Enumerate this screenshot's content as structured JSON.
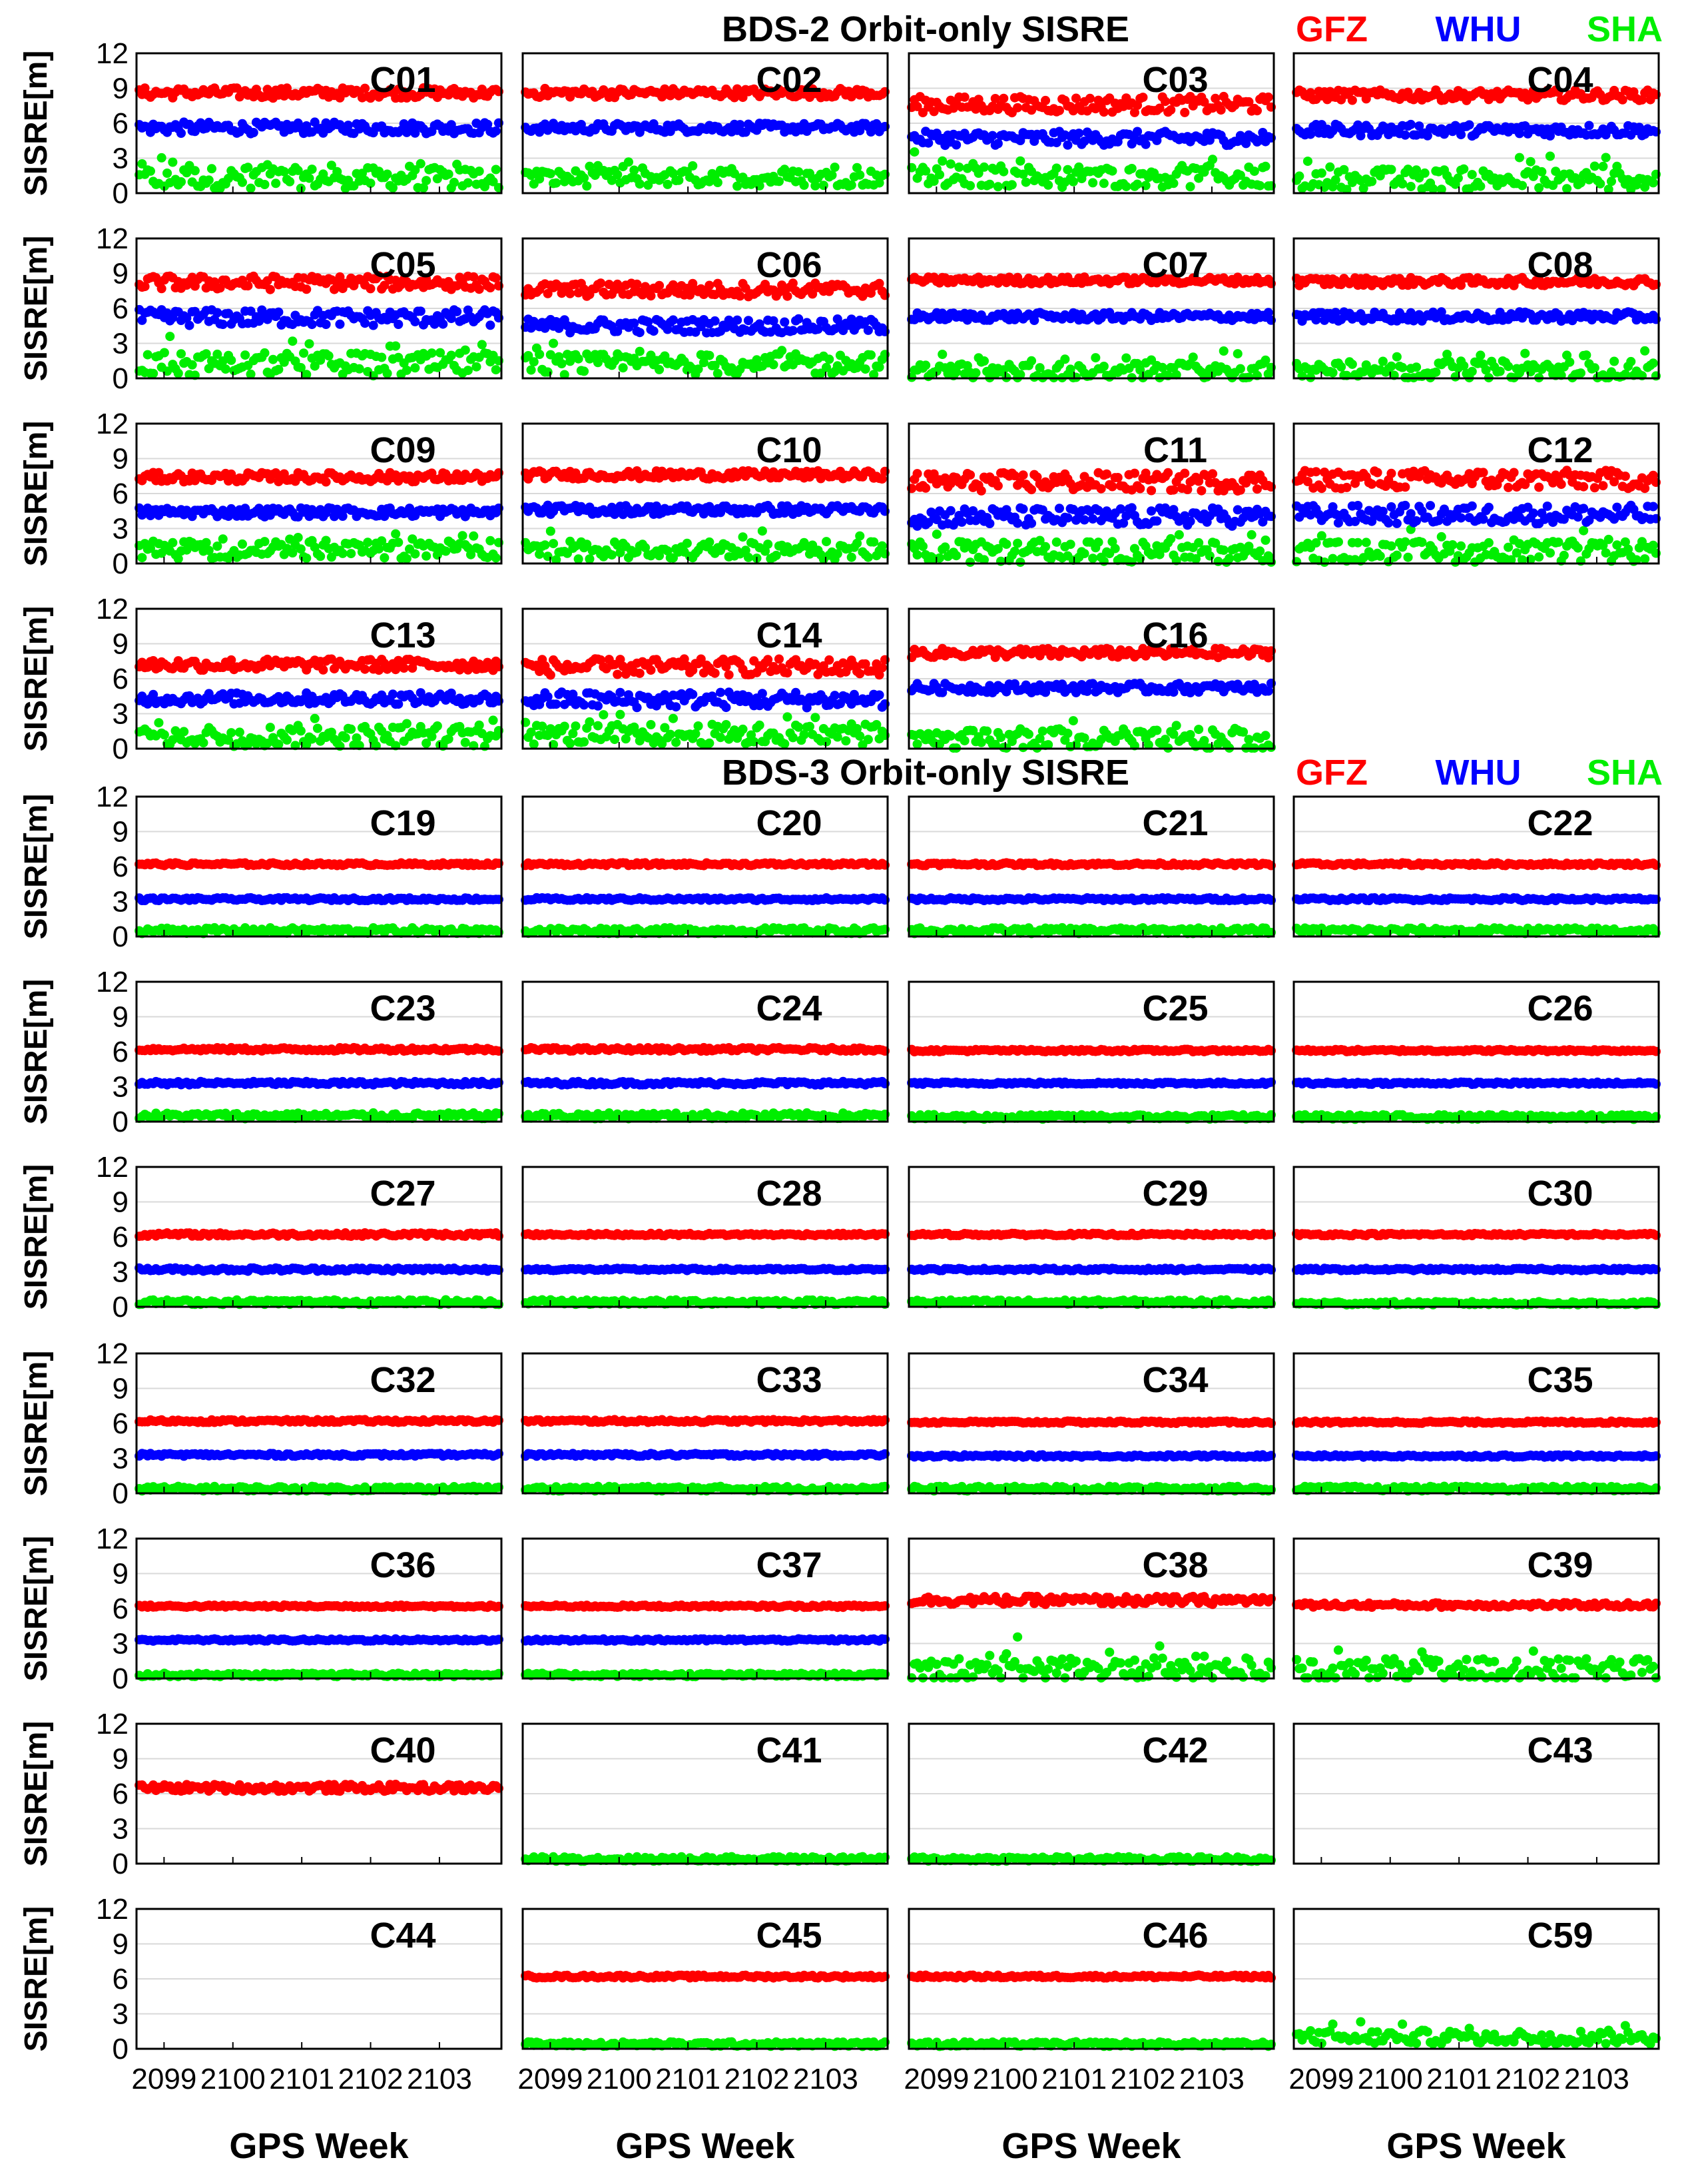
{
  "chart_data": {
    "type": "scatter",
    "sections": [
      {
        "title": "BDS-2 Orbit-only SISRE",
        "legend": [
          "GFZ",
          "WHU",
          "SHA"
        ]
      },
      {
        "title": "BDS-3 Orbit-only SISRE",
        "legend": [
          "GFZ",
          "WHU",
          "SHA"
        ]
      }
    ],
    "legend_colors": {
      "GFZ": "#ff0000",
      "WHU": "#0000ff",
      "SHA": "#00ee00"
    },
    "ylabel": "SISRE[m]",
    "xlabel": "GPS Week",
    "ylim": [
      0,
      12
    ],
    "yticks": [
      "12",
      "9",
      "6",
      "3",
      "0"
    ],
    "xlim": [
      2098.6,
      2103.9
    ],
    "xticks": [
      "2099",
      "2100",
      "2101",
      "2102",
      "2103"
    ],
    "grid": "horizontal",
    "panels": [
      {
        "label": "C01",
        "series": {
          "GFZ": {
            "level": 8.6,
            "spread": 0.45
          },
          "WHU": {
            "level": 5.6,
            "spread": 0.5
          },
          "SHA": {
            "level": 1.3,
            "spread": 0.9
          }
        }
      },
      {
        "label": "C02",
        "series": {
          "GFZ": {
            "level": 8.6,
            "spread": 0.4
          },
          "WHU": {
            "level": 5.6,
            "spread": 0.4
          },
          "SHA": {
            "level": 1.3,
            "spread": 0.7
          }
        }
      },
      {
        "label": "C03",
        "series": {
          "GFZ": {
            "level": 7.6,
            "spread": 0.7
          },
          "WHU": {
            "level": 4.7,
            "spread": 0.6
          },
          "SHA": {
            "level": 1.4,
            "spread": 0.9
          }
        }
      },
      {
        "label": "C04",
        "series": {
          "GFZ": {
            "level": 8.4,
            "spread": 0.45
          },
          "WHU": {
            "level": 5.4,
            "spread": 0.5
          },
          "SHA": {
            "level": 1.2,
            "spread": 0.9
          }
        }
      },
      {
        "label": "C05",
        "series": {
          "GFZ": {
            "level": 8.2,
            "spread": 0.6
          },
          "WHU": {
            "level": 5.2,
            "spread": 0.7
          },
          "SHA": {
            "level": 1.2,
            "spread": 1.0
          }
        }
      },
      {
        "label": "C06",
        "series": {
          "GFZ": {
            "level": 7.6,
            "spread": 0.6
          },
          "WHU": {
            "level": 4.5,
            "spread": 0.6
          },
          "SHA": {
            "level": 1.2,
            "spread": 0.9
          }
        }
      },
      {
        "label": "C07",
        "series": {
          "GFZ": {
            "level": 8.4,
            "spread": 0.3
          },
          "WHU": {
            "level": 5.3,
            "spread": 0.35
          },
          "SHA": {
            "level": 0.6,
            "spread": 0.7
          }
        }
      },
      {
        "label": "C08",
        "series": {
          "GFZ": {
            "level": 8.3,
            "spread": 0.35
          },
          "WHU": {
            "level": 5.3,
            "spread": 0.4
          },
          "SHA": {
            "level": 0.7,
            "spread": 0.8
          }
        }
      },
      {
        "label": "C09",
        "series": {
          "GFZ": {
            "level": 7.4,
            "spread": 0.4
          },
          "WHU": {
            "level": 4.4,
            "spread": 0.4
          },
          "SHA": {
            "level": 1.2,
            "spread": 0.8
          }
        }
      },
      {
        "label": "C10",
        "series": {
          "GFZ": {
            "level": 7.6,
            "spread": 0.35
          },
          "WHU": {
            "level": 4.6,
            "spread": 0.4
          },
          "SHA": {
            "level": 1.1,
            "spread": 0.8
          }
        }
      },
      {
        "label": "C11",
        "series": {
          "GFZ": {
            "level": 7.0,
            "spread": 0.8
          },
          "WHU": {
            "level": 4.0,
            "spread": 0.8
          },
          "SHA": {
            "level": 1.0,
            "spread": 0.9
          }
        }
      },
      {
        "label": "C12",
        "series": {
          "GFZ": {
            "level": 7.2,
            "spread": 0.8
          },
          "WHU": {
            "level": 4.2,
            "spread": 0.8
          },
          "SHA": {
            "level": 1.0,
            "spread": 0.9
          }
        }
      },
      {
        "label": "C13",
        "series": {
          "GFZ": {
            "level": 7.2,
            "spread": 0.5
          },
          "WHU": {
            "level": 4.3,
            "spread": 0.5
          },
          "SHA": {
            "level": 1.1,
            "spread": 0.9
          }
        }
      },
      {
        "label": "C14",
        "series": {
          "GFZ": {
            "level": 7.0,
            "spread": 0.7
          },
          "WHU": {
            "level": 4.2,
            "spread": 0.7
          },
          "SHA": {
            "level": 1.2,
            "spread": 0.9
          }
        }
      },
      {
        "label": "C16",
        "series": {
          "GFZ": {
            "level": 8.2,
            "spread": 0.4
          },
          "WHU": {
            "level": 5.2,
            "spread": 0.4
          },
          "SHA": {
            "level": 0.7,
            "spread": 0.9
          }
        }
      },
      {
        "label": "",
        "empty": true
      },
      {
        "label": "C19",
        "series": {
          "GFZ": {
            "level": 6.2,
            "spread": 0.12
          },
          "WHU": {
            "level": 3.2,
            "spread": 0.12
          },
          "SHA": {
            "level": 0.5,
            "spread": 0.25
          }
        }
      },
      {
        "label": "C20",
        "series": {
          "GFZ": {
            "level": 6.2,
            "spread": 0.12
          },
          "WHU": {
            "level": 3.2,
            "spread": 0.12
          },
          "SHA": {
            "level": 0.5,
            "spread": 0.25
          }
        }
      },
      {
        "label": "C21",
        "series": {
          "GFZ": {
            "level": 6.2,
            "spread": 0.12
          },
          "WHU": {
            "level": 3.2,
            "spread": 0.12
          },
          "SHA": {
            "level": 0.5,
            "spread": 0.25
          }
        }
      },
      {
        "label": "C22",
        "series": {
          "GFZ": {
            "level": 6.2,
            "spread": 0.12
          },
          "WHU": {
            "level": 3.2,
            "spread": 0.12
          },
          "SHA": {
            "level": 0.5,
            "spread": 0.25
          }
        }
      },
      {
        "label": "C23",
        "series": {
          "GFZ": {
            "level": 6.2,
            "spread": 0.15
          },
          "WHU": {
            "level": 3.3,
            "spread": 0.15
          },
          "SHA": {
            "level": 0.5,
            "spread": 0.25
          }
        }
      },
      {
        "label": "C24",
        "series": {
          "GFZ": {
            "level": 6.2,
            "spread": 0.15
          },
          "WHU": {
            "level": 3.3,
            "spread": 0.15
          },
          "SHA": {
            "level": 0.5,
            "spread": 0.25
          }
        }
      },
      {
        "label": "C25",
        "series": {
          "GFZ": {
            "level": 6.1,
            "spread": 0.1
          },
          "WHU": {
            "level": 3.3,
            "spread": 0.1
          },
          "SHA": {
            "level": 0.4,
            "spread": 0.2
          }
        }
      },
      {
        "label": "C26",
        "series": {
          "GFZ": {
            "level": 6.1,
            "spread": 0.1
          },
          "WHU": {
            "level": 3.3,
            "spread": 0.1
          },
          "SHA": {
            "level": 0.4,
            "spread": 0.2
          }
        }
      },
      {
        "label": "C27",
        "series": {
          "GFZ": {
            "level": 6.2,
            "spread": 0.15
          },
          "WHU": {
            "level": 3.2,
            "spread": 0.15
          },
          "SHA": {
            "level": 0.4,
            "spread": 0.2
          }
        }
      },
      {
        "label": "C28",
        "series": {
          "GFZ": {
            "level": 6.2,
            "spread": 0.1
          },
          "WHU": {
            "level": 3.2,
            "spread": 0.1
          },
          "SHA": {
            "level": 0.4,
            "spread": 0.2
          }
        }
      },
      {
        "label": "C29",
        "series": {
          "GFZ": {
            "level": 6.2,
            "spread": 0.1
          },
          "WHU": {
            "level": 3.2,
            "spread": 0.1
          },
          "SHA": {
            "level": 0.4,
            "spread": 0.2
          }
        }
      },
      {
        "label": "C30",
        "series": {
          "GFZ": {
            "level": 6.2,
            "spread": 0.1
          },
          "WHU": {
            "level": 3.2,
            "spread": 0.1
          },
          "SHA": {
            "level": 0.3,
            "spread": 0.15
          }
        }
      },
      {
        "label": "C32",
        "series": {
          "GFZ": {
            "level": 6.2,
            "spread": 0.12
          },
          "WHU": {
            "level": 3.3,
            "spread": 0.12
          },
          "SHA": {
            "level": 0.4,
            "spread": 0.2
          }
        }
      },
      {
        "label": "C33",
        "series": {
          "GFZ": {
            "level": 6.2,
            "spread": 0.12
          },
          "WHU": {
            "level": 3.3,
            "spread": 0.12
          },
          "SHA": {
            "level": 0.4,
            "spread": 0.2
          }
        }
      },
      {
        "label": "C34",
        "series": {
          "GFZ": {
            "level": 6.1,
            "spread": 0.1
          },
          "WHU": {
            "level": 3.2,
            "spread": 0.1
          },
          "SHA": {
            "level": 0.4,
            "spread": 0.2
          }
        }
      },
      {
        "label": "C35",
        "series": {
          "GFZ": {
            "level": 6.1,
            "spread": 0.1
          },
          "WHU": {
            "level": 3.2,
            "spread": 0.1
          },
          "SHA": {
            "level": 0.4,
            "spread": 0.2
          }
        }
      },
      {
        "label": "C36",
        "series": {
          "GFZ": {
            "level": 6.2,
            "spread": 0.1
          },
          "WHU": {
            "level": 3.3,
            "spread": 0.1
          },
          "SHA": {
            "level": 0.3,
            "spread": 0.15
          }
        }
      },
      {
        "label": "C37",
        "series": {
          "GFZ": {
            "level": 6.2,
            "spread": 0.1
          },
          "WHU": {
            "level": 3.3,
            "spread": 0.1
          },
          "SHA": {
            "level": 0.3,
            "spread": 0.15
          }
        }
      },
      {
        "label": "C38",
        "series": {
          "GFZ": {
            "level": 6.7,
            "spread": 0.35
          },
          "SHA": {
            "level": 0.8,
            "spread": 1.1
          }
        }
      },
      {
        "label": "C39",
        "series": {
          "GFZ": {
            "level": 6.3,
            "spread": 0.2
          },
          "SHA": {
            "level": 0.7,
            "spread": 1.0
          }
        }
      },
      {
        "label": "C40",
        "series": {
          "GFZ": {
            "level": 6.5,
            "spread": 0.3
          }
        }
      },
      {
        "label": "C41",
        "series": {
          "SHA": {
            "level": 0.4,
            "spread": 0.2
          }
        }
      },
      {
        "label": "C42",
        "series": {
          "SHA": {
            "level": 0.4,
            "spread": 0.2
          }
        }
      },
      {
        "label": "C43",
        "series": {}
      },
      {
        "label": "C44",
        "series": {}
      },
      {
        "label": "C45",
        "series": {
          "GFZ": {
            "level": 6.2,
            "spread": 0.12
          },
          "SHA": {
            "level": 0.4,
            "spread": 0.2
          }
        }
      },
      {
        "label": "C46",
        "series": {
          "GFZ": {
            "level": 6.2,
            "spread": 0.12
          },
          "SHA": {
            "level": 0.4,
            "spread": 0.2
          }
        }
      },
      {
        "label": "C59",
        "series": {
          "SHA": {
            "level": 1.0,
            "spread": 0.6
          }
        }
      }
    ]
  }
}
